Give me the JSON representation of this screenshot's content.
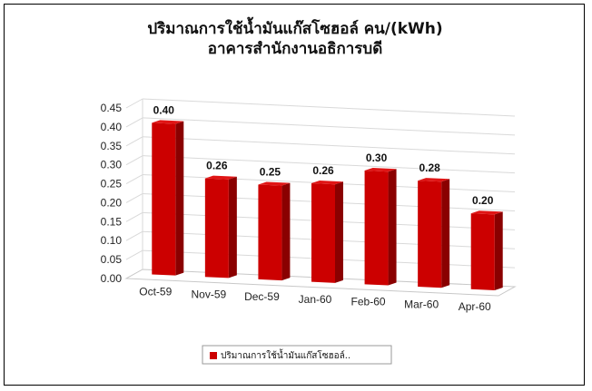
{
  "chart_data": {
    "type": "bar",
    "title": "ปริมาณการใช้น้ำมันแก๊สโซฮอล์ คน/(kWh)",
    "subtitle": "อาคารสำนักงานอธิการบดี",
    "categories": [
      "Oct-59",
      "Nov-59",
      "Dec-59",
      "Jan-60",
      "Feb-60",
      "Mar-60",
      "Apr-60"
    ],
    "series": [
      {
        "name": "ปริมาณการใช้น้ำมันแก๊สโซฮอล์..",
        "values": [
          0.4,
          0.26,
          0.25,
          0.26,
          0.3,
          0.28,
          0.2
        ],
        "color": "#cc0000"
      }
    ],
    "data_labels": [
      "0.40",
      "0.26",
      "0.25",
      "0.26",
      "0.30",
      "0.28",
      "0.20"
    ],
    "y_ticks": [
      "0.00",
      "0.05",
      "0.10",
      "0.15",
      "0.20",
      "0.25",
      "0.30",
      "0.35",
      "0.40",
      "0.45"
    ],
    "ylim": [
      0,
      0.45
    ],
    "grid": true,
    "legend_position": "bottom",
    "style": "3d-clustered-column"
  }
}
